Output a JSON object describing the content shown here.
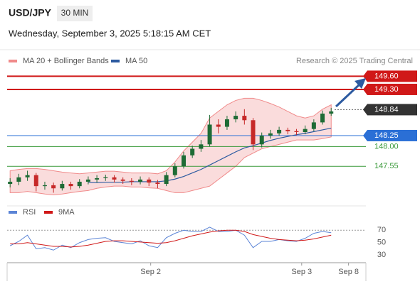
{
  "chart_data": {
    "type": "candlestick",
    "symbol": "USD/JPY",
    "interval": "30 MIN",
    "timestamp": "Wednesday, September 3, 2025 5:18:15 AM CET",
    "copyright": "Research © 2025 Trading Central",
    "x": [
      0,
      1,
      2,
      3,
      4,
      5,
      6,
      7,
      8,
      9,
      10,
      11,
      12,
      13,
      14,
      15,
      16,
      17,
      18,
      19,
      20,
      21,
      22,
      23,
      24,
      25,
      26,
      27,
      28,
      29,
      30,
      31,
      32,
      33,
      34,
      35,
      36,
      37
    ],
    "xlim": [
      -1,
      41
    ],
    "xticks": [
      {
        "value": 16.2,
        "label": "Sep 2"
      },
      {
        "value": 33.6,
        "label": "Sep 3"
      },
      {
        "value": 39,
        "label": "Sep 8"
      }
    ],
    "ylim": [
      146.65,
      149.8
    ],
    "open": [
      147.15,
      147.2,
      147.3,
      147.35,
      147.1,
      147.12,
      147.05,
      147.15,
      147.1,
      147.2,
      147.25,
      147.28,
      147.3,
      147.25,
      147.22,
      147.2,
      147.25,
      147.18,
      147.15,
      147.35,
      147.55,
      147.8,
      147.95,
      148.05,
      148.5,
      148.45,
      148.62,
      148.7,
      148.6,
      148.05,
      148.25,
      148.3,
      148.38,
      148.35,
      148.33,
      148.4,
      148.55,
      148.75
    ],
    "high": [
      147.28,
      147.38,
      147.45,
      147.4,
      147.2,
      147.18,
      147.22,
      147.2,
      147.26,
      147.32,
      147.35,
      147.36,
      147.35,
      147.3,
      147.28,
      147.32,
      147.3,
      147.24,
      147.42,
      147.62,
      147.88,
      148.02,
      148.15,
      148.72,
      148.62,
      148.7,
      148.8,
      148.85,
      148.65,
      148.32,
      148.38,
      148.45,
      148.43,
      148.4,
      148.48,
      148.62,
      148.82,
      148.88
    ],
    "low": [
      147.07,
      147.12,
      147.22,
      146.98,
      147.02,
      146.95,
      147.0,
      147.02,
      147.05,
      147.14,
      147.18,
      147.22,
      147.18,
      147.15,
      147.12,
      147.14,
      147.1,
      147.05,
      147.1,
      147.3,
      147.5,
      147.74,
      147.88,
      148.0,
      148.3,
      148.38,
      148.55,
      148.5,
      147.92,
      147.98,
      148.18,
      148.25,
      148.28,
      148.26,
      148.28,
      148.35,
      148.5,
      148.7
    ],
    "close": [
      147.2,
      147.3,
      147.35,
      147.1,
      147.12,
      147.05,
      147.15,
      147.1,
      147.2,
      147.25,
      147.28,
      147.3,
      147.25,
      147.22,
      147.2,
      147.25,
      147.18,
      147.15,
      147.35,
      147.55,
      147.8,
      147.95,
      148.05,
      148.5,
      148.45,
      148.62,
      148.7,
      148.6,
      148.05,
      148.25,
      148.3,
      148.38,
      148.35,
      148.33,
      148.4,
      148.55,
      148.75,
      148.8
    ],
    "up_color": "#1e6b35",
    "down_color": "#c62828",
    "bands": {
      "name": "MA 20 + Bollinger Bands",
      "color": "#f08a8a",
      "upper": [
        147.45,
        147.48,
        147.5,
        147.5,
        147.48,
        147.45,
        147.42,
        147.4,
        147.38,
        147.4,
        147.42,
        147.44,
        147.44,
        147.42,
        147.4,
        147.4,
        147.4,
        147.38,
        147.45,
        147.65,
        147.9,
        148.1,
        148.3,
        148.65,
        148.8,
        148.95,
        149.05,
        149.1,
        149.1,
        149.05,
        148.98,
        148.9,
        148.8,
        148.7,
        148.65,
        148.7,
        148.85,
        148.95
      ],
      "lower": [
        146.95,
        146.95,
        146.98,
        146.95,
        146.92,
        146.9,
        146.92,
        146.95,
        146.98,
        147.0,
        147.05,
        147.08,
        147.1,
        147.1,
        147.08,
        147.08,
        147.06,
        147.05,
        147.0,
        146.95,
        146.95,
        147.0,
        147.05,
        147.1,
        147.25,
        147.4,
        147.55,
        147.75,
        147.85,
        147.95,
        148.0,
        148.05,
        148.1,
        148.15,
        148.15,
        148.15,
        148.18,
        148.22
      ]
    },
    "ma50": {
      "name": "MA 50",
      "color": "#2c5aa0",
      "values": [
        null,
        null,
        null,
        null,
        null,
        null,
        null,
        null,
        null,
        147.18,
        147.18,
        147.19,
        147.19,
        147.19,
        147.2,
        147.2,
        147.2,
        147.2,
        147.22,
        147.26,
        147.32,
        147.4,
        147.48,
        147.58,
        147.68,
        147.78,
        147.88,
        147.97,
        148.02,
        148.08,
        148.14,
        148.19,
        148.23,
        148.27,
        148.3,
        148.34,
        148.38,
        148.42
      ]
    },
    "levels": [
      {
        "value": 149.6,
        "label": "149.60",
        "color": "#d01818",
        "style": "box"
      },
      {
        "value": 149.3,
        "label": "149.30",
        "color": "#d01818",
        "style": "box"
      },
      {
        "value": 148.84,
        "label": "148.84",
        "color": "#333333",
        "style": "current"
      },
      {
        "value": 148.25,
        "label": "148.25",
        "color": "#2a6fd6",
        "style": "box"
      },
      {
        "value": 148,
        "label": "148.00",
        "color": "#3a9a3a",
        "style": "text"
      },
      {
        "value": 147.55,
        "label": "147.55",
        "color": "#3a9a3a",
        "style": "text"
      }
    ],
    "rsi": {
      "ylim": [
        20,
        100
      ],
      "yticks": [
        70,
        50,
        30
      ],
      "series": [
        {
          "name": "RSI",
          "color": "#5b84d6",
          "values": [
            45,
            52,
            62,
            40,
            42,
            38,
            46,
            42,
            50,
            55,
            57,
            58,
            52,
            50,
            48,
            53,
            45,
            42,
            58,
            65,
            70,
            68,
            68,
            75,
            68,
            68,
            70,
            62,
            42,
            52,
            52,
            55,
            53,
            52,
            57,
            65,
            68,
            66
          ]
        },
        {
          "name": "9MA",
          "color": "#d01818",
          "values": [
            48,
            48,
            50,
            48,
            46,
            44,
            44,
            43,
            44,
            46,
            49,
            52,
            53,
            53,
            52,
            51,
            50,
            49,
            50,
            53,
            57,
            61,
            64,
            67,
            69,
            70,
            70,
            68,
            63,
            60,
            57,
            55,
            54,
            53,
            54,
            56,
            59,
            62
          ]
        }
      ]
    }
  }
}
